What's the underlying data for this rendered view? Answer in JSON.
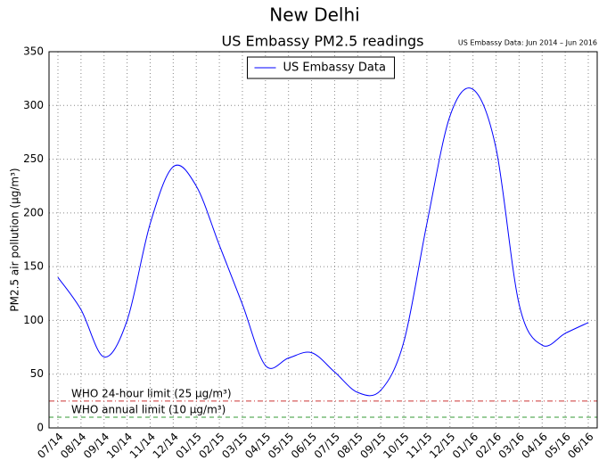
{
  "chart_data": {
    "type": "line",
    "title": "New Delhi",
    "subtitle": "US Embassy PM2.5 readings",
    "note": "US Embassy Data: Jun 2014 – Jun 2016",
    "y_label": "PM2.5 air pollution (µg/m³)",
    "categories": [
      "07/14",
      "08/14",
      "09/14",
      "10/14",
      "11/14",
      "12/14",
      "01/15",
      "02/15",
      "03/15",
      "04/15",
      "05/15",
      "06/15",
      "07/15",
      "08/15",
      "09/15",
      "10/15",
      "11/15",
      "12/15",
      "01/16",
      "02/16",
      "03/16",
      "04/16",
      "05/16",
      "06/16"
    ],
    "series": [
      {
        "name": "US Embassy Data",
        "color": "#0000ff",
        "values": [
          140,
          110,
          66,
          100,
          190,
          243,
          225,
          170,
          115,
          58,
          65,
          70,
          52,
          33,
          35,
          80,
          190,
          290,
          315,
          260,
          115,
          77,
          88,
          98
        ]
      }
    ],
    "ylim": [
      0,
      350
    ],
    "yticks": [
      0,
      50,
      100,
      150,
      200,
      250,
      300,
      350
    ],
    "grid": true,
    "legend": "upper center",
    "reference_lines": [
      {
        "label": "WHO 24-hour limit (25 µg/m³)",
        "value": 25,
        "color": "#cc3333",
        "dash": "6,3,1,3"
      },
      {
        "label": "WHO annual limit (10 µg/m³)",
        "value": 10,
        "color": "#339933",
        "dash": "5,4"
      }
    ]
  }
}
